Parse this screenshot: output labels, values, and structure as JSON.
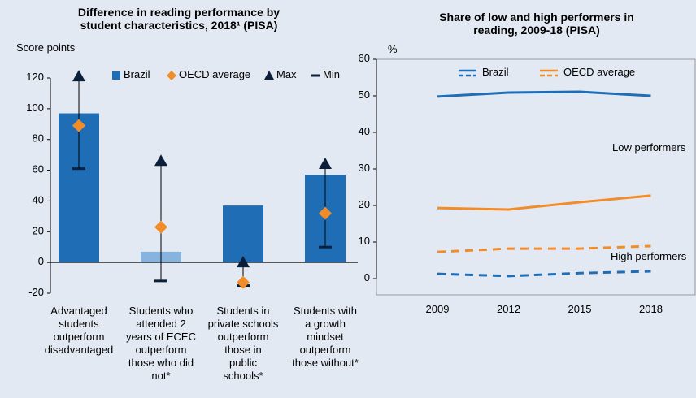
{
  "chart_data": [
    {
      "type": "bar",
      "title": "Difference in reading performance by\nstudent characteristics, 2018¹  (PISA)",
      "y_label": "Score points",
      "categories": [
        "Advantaged\nstudents\noutperform\ndisadvantaged",
        "Students who\nattended 2\nyears of ECEC\noutperform\nthose who did\nnot*",
        "Students in\nprivate schools\noutperform\nthose in\npublic\nschools*",
        "Students with\na growth\nmindset\noutperform\nthose without*"
      ],
      "series": [
        {
          "name": "Brazil",
          "color": "#1f6eb5",
          "colors": [
            "#1f6eb5",
            "#86b4de",
            "#1f6eb5",
            "#1f6eb5"
          ],
          "values": [
            97,
            7,
            37,
            57
          ]
        },
        {
          "name": "OECD average",
          "color": "#f28c28",
          "values": [
            89,
            23,
            -13,
            32
          ]
        },
        {
          "name": "Max",
          "color": "#0b1f3a",
          "values": [
            121,
            66,
            0,
            64
          ]
        },
        {
          "name": "Min",
          "color": "#0b1f3a",
          "values": [
            61,
            -12,
            -15,
            10
          ]
        }
      ],
      "ylim": [
        -20,
        120
      ],
      "yticks": [
        -20,
        0,
        20,
        40,
        60,
        80,
        100,
        120
      ]
    },
    {
      "type": "line",
      "title": "Share of low and high performers in\nreading, 2009-18 (PISA)",
      "y_label": "%",
      "categories": [
        "2009",
        "2012",
        "2015",
        "2018"
      ],
      "series": [
        {
          "name": "Brazil",
          "color": "#1f6eb5",
          "low_performers": [
            49.8,
            50.9,
            51.1,
            50
          ],
          "high_performers": [
            1.3,
            0.7,
            1.5,
            2
          ]
        },
        {
          "name": "OECD average",
          "color": "#f28c28",
          "low_performers": [
            19.3,
            18.9,
            20.9,
            22.7
          ],
          "high_performers": [
            7.3,
            8.2,
            8.2,
            8.9
          ]
        }
      ],
      "annotations": {
        "low_performers": "Low performers",
        "high_performers": "High performers"
      },
      "ylim": [
        0,
        60
      ],
      "yticks": [
        0,
        10,
        20,
        30,
        40,
        50,
        60
      ]
    }
  ]
}
